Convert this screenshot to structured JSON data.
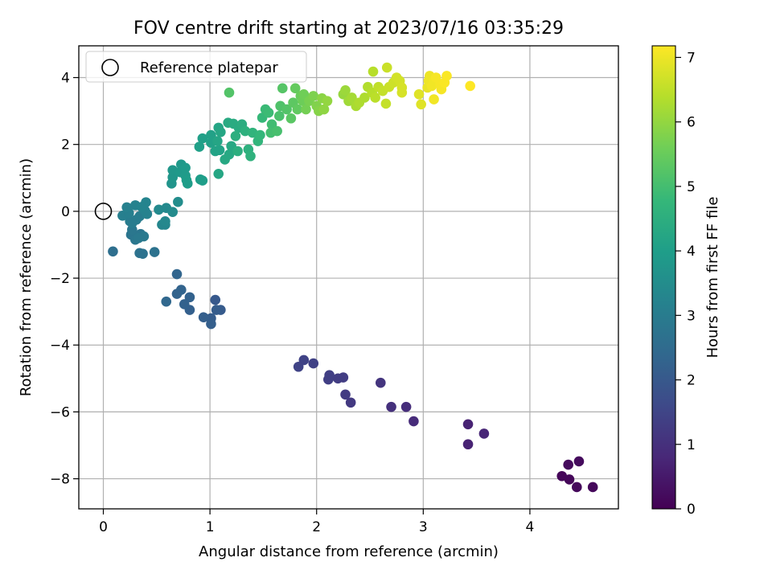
{
  "chart_data": {
    "type": "scatter",
    "title": "FOV centre drift starting at 2023/07/16 03:35:29",
    "xlabel": "Angular distance from reference (arcmin)",
    "ylabel": "Rotation from reference (arcmin)",
    "xlim": [
      -0.23,
      4.83
    ],
    "ylim": [
      -8.9,
      4.95
    ],
    "xticks": [
      0,
      1,
      2,
      3,
      4
    ],
    "yticks": [
      -8,
      -6,
      -4,
      -2,
      0,
      2,
      4
    ],
    "grid": true,
    "legend": {
      "placement": "top-left",
      "entries": [
        "Reference platepar"
      ]
    },
    "reference_point": {
      "x": 0,
      "y": 0,
      "label": "Reference platepar"
    },
    "colorbar": {
      "label": "Hours from first FF file",
      "range": [
        0,
        7.18
      ],
      "ticks": [
        0,
        1,
        2,
        3,
        4,
        5,
        6,
        7
      ],
      "colormap": "viridis",
      "colors": [
        "#440154",
        "#482878",
        "#3e4989",
        "#31688e",
        "#26828e",
        "#1f9e89",
        "#35b779",
        "#6ece58",
        "#b5de2b",
        "#fde725"
      ]
    },
    "points": [
      {
        "x": 4.3,
        "y": -7.92,
        "c": 0.1
      },
      {
        "x": 4.37,
        "y": -8.02,
        "c": 0.12
      },
      {
        "x": 4.44,
        "y": -8.25,
        "c": 0.15
      },
      {
        "x": 4.59,
        "y": -8.25,
        "c": 0.15
      },
      {
        "x": 4.46,
        "y": -7.48,
        "c": 0.2
      },
      {
        "x": 4.36,
        "y": -7.58,
        "c": 0.2
      },
      {
        "x": 3.42,
        "y": -6.37,
        "c": 0.7
      },
      {
        "x": 3.42,
        "y": -6.97,
        "c": 0.7
      },
      {
        "x": 3.57,
        "y": -6.65,
        "c": 0.75
      },
      {
        "x": 2.91,
        "y": -6.28,
        "c": 0.9
      },
      {
        "x": 2.84,
        "y": -5.85,
        "c": 0.95
      },
      {
        "x": 2.7,
        "y": -5.85,
        "c": 1.0
      },
      {
        "x": 2.6,
        "y": -5.13,
        "c": 1.1
      },
      {
        "x": 2.32,
        "y": -5.72,
        "c": 1.2
      },
      {
        "x": 2.27,
        "y": -5.48,
        "c": 1.25
      },
      {
        "x": 2.25,
        "y": -4.97,
        "c": 1.3
      },
      {
        "x": 2.2,
        "y": -5.0,
        "c": 1.3
      },
      {
        "x": 2.12,
        "y": -4.9,
        "c": 1.35
      },
      {
        "x": 2.11,
        "y": -5.03,
        "c": 1.35
      },
      {
        "x": 1.97,
        "y": -4.55,
        "c": 1.4
      },
      {
        "x": 1.88,
        "y": -4.45,
        "c": 1.45
      },
      {
        "x": 1.83,
        "y": -4.65,
        "c": 1.45
      },
      {
        "x": 1.05,
        "y": -2.65,
        "c": 2.0
      },
      {
        "x": 1.1,
        "y": -2.95,
        "c": 2.05
      },
      {
        "x": 1.06,
        "y": -2.95,
        "c": 2.1
      },
      {
        "x": 1.01,
        "y": -3.2,
        "c": 2.1
      },
      {
        "x": 1.01,
        "y": -3.37,
        "c": 2.15
      },
      {
        "x": 0.94,
        "y": -3.17,
        "c": 2.15
      },
      {
        "x": 0.81,
        "y": -2.95,
        "c": 2.2
      },
      {
        "x": 0.81,
        "y": -2.57,
        "c": 2.25
      },
      {
        "x": 0.76,
        "y": -2.78,
        "c": 2.25
      },
      {
        "x": 0.73,
        "y": -2.35,
        "c": 2.3
      },
      {
        "x": 0.69,
        "y": -2.47,
        "c": 2.3
      },
      {
        "x": 0.69,
        "y": -1.88,
        "c": 2.35
      },
      {
        "x": 0.59,
        "y": -2.7,
        "c": 2.4
      },
      {
        "x": 0.09,
        "y": -1.2,
        "c": 2.6
      },
      {
        "x": 0.37,
        "y": -1.27,
        "c": 2.7
      },
      {
        "x": 0.34,
        "y": -1.25,
        "c": 2.7
      },
      {
        "x": 0.48,
        "y": -1.22,
        "c": 2.7
      },
      {
        "x": 0.26,
        "y": -0.7,
        "c": 2.8
      },
      {
        "x": 0.35,
        "y": -0.68,
        "c": 2.8
      },
      {
        "x": 0.3,
        "y": -0.85,
        "c": 2.85
      },
      {
        "x": 0.27,
        "y": -0.55,
        "c": 2.85
      },
      {
        "x": 0.38,
        "y": -0.75,
        "c": 2.9
      },
      {
        "x": 0.33,
        "y": -0.8,
        "c": 2.9
      },
      {
        "x": 0.25,
        "y": -0.3,
        "c": 3.0
      },
      {
        "x": 0.31,
        "y": -0.25,
        "c": 3.0
      },
      {
        "x": 0.27,
        "y": -0.35,
        "c": 3.0
      },
      {
        "x": 0.34,
        "y": -0.15,
        "c": 3.05
      },
      {
        "x": 0.18,
        "y": -0.13,
        "c": 3.1
      },
      {
        "x": 0.24,
        "y": -0.05,
        "c": 3.1
      },
      {
        "x": 0.22,
        "y": 0.12,
        "c": 3.15
      },
      {
        "x": 0.3,
        "y": 0.18,
        "c": 3.2
      },
      {
        "x": 0.39,
        "y": 0.02,
        "c": 3.2
      },
      {
        "x": 0.41,
        "y": -0.08,
        "c": 3.2
      },
      {
        "x": 0.4,
        "y": 0.27,
        "c": 3.25
      },
      {
        "x": 0.36,
        "y": 0.13,
        "c": 3.25
      },
      {
        "x": 0.58,
        "y": -0.4,
        "c": 3.3
      },
      {
        "x": 0.55,
        "y": -0.4,
        "c": 3.3
      },
      {
        "x": 0.58,
        "y": -0.3,
        "c": 3.35
      },
      {
        "x": 0.52,
        "y": 0.05,
        "c": 3.4
      },
      {
        "x": 0.59,
        "y": 0.1,
        "c": 3.4
      },
      {
        "x": 0.65,
        "y": -0.02,
        "c": 3.45
      },
      {
        "x": 0.7,
        "y": 0.28,
        "c": 3.5
      },
      {
        "x": 0.64,
        "y": 0.83,
        "c": 3.7
      },
      {
        "x": 0.65,
        "y": 1.02,
        "c": 3.75
      },
      {
        "x": 0.65,
        "y": 1.23,
        "c": 3.8
      },
      {
        "x": 0.72,
        "y": 1.17,
        "c": 3.85
      },
      {
        "x": 0.73,
        "y": 1.4,
        "c": 3.85
      },
      {
        "x": 0.77,
        "y": 1.3,
        "c": 3.9
      },
      {
        "x": 0.77,
        "y": 1.07,
        "c": 3.9
      },
      {
        "x": 0.78,
        "y": 0.93,
        "c": 3.95
      },
      {
        "x": 0.79,
        "y": 0.83,
        "c": 3.95
      },
      {
        "x": 0.91,
        "y": 0.95,
        "c": 4.0
      },
      {
        "x": 0.93,
        "y": 0.92,
        "c": 4.0
      },
      {
        "x": 0.9,
        "y": 1.93,
        "c": 4.05
      },
      {
        "x": 0.93,
        "y": 2.18,
        "c": 4.05
      },
      {
        "x": 1.01,
        "y": 2.28,
        "c": 4.1
      },
      {
        "x": 1.01,
        "y": 2.05,
        "c": 4.1
      },
      {
        "x": 1.05,
        "y": 1.8,
        "c": 4.15
      },
      {
        "x": 1.09,
        "y": 1.83,
        "c": 4.15
      },
      {
        "x": 1.07,
        "y": 2.1,
        "c": 4.2
      },
      {
        "x": 1.08,
        "y": 2.5,
        "c": 4.2
      },
      {
        "x": 1.1,
        "y": 2.37,
        "c": 4.25
      },
      {
        "x": 1.08,
        "y": 1.12,
        "c": 4.25
      },
      {
        "x": 1.14,
        "y": 1.55,
        "c": 4.3
      },
      {
        "x": 1.18,
        "y": 1.7,
        "c": 4.3
      },
      {
        "x": 1.2,
        "y": 1.95,
        "c": 4.3
      },
      {
        "x": 1.17,
        "y": 2.65,
        "c": 4.35
      },
      {
        "x": 1.22,
        "y": 2.62,
        "c": 4.4
      },
      {
        "x": 1.27,
        "y": 2.5,
        "c": 4.4
      },
      {
        "x": 1.3,
        "y": 2.6,
        "c": 4.45
      },
      {
        "x": 1.24,
        "y": 2.25,
        "c": 4.5
      },
      {
        "x": 1.26,
        "y": 1.8,
        "c": 4.5
      },
      {
        "x": 1.33,
        "y": 2.4,
        "c": 4.55
      },
      {
        "x": 1.36,
        "y": 1.85,
        "c": 4.55
      },
      {
        "x": 1.38,
        "y": 1.65,
        "c": 4.6
      },
      {
        "x": 1.4,
        "y": 2.35,
        "c": 4.65
      },
      {
        "x": 1.45,
        "y": 2.1,
        "c": 4.7
      },
      {
        "x": 1.47,
        "y": 2.28,
        "c": 4.75
      },
      {
        "x": 1.49,
        "y": 2.8,
        "c": 4.8
      },
      {
        "x": 1.52,
        "y": 3.05,
        "c": 4.85
      },
      {
        "x": 1.55,
        "y": 2.95,
        "c": 4.9
      },
      {
        "x": 1.58,
        "y": 2.6,
        "c": 4.95
      },
      {
        "x": 1.57,
        "y": 2.35,
        "c": 5.0
      },
      {
        "x": 1.63,
        "y": 2.4,
        "c": 5.05
      },
      {
        "x": 1.65,
        "y": 2.85,
        "c": 5.1
      },
      {
        "x": 1.66,
        "y": 3.15,
        "c": 5.15
      },
      {
        "x": 1.72,
        "y": 3.05,
        "c": 5.2
      },
      {
        "x": 1.68,
        "y": 3.68,
        "c": 5.25
      },
      {
        "x": 1.18,
        "y": 3.55,
        "c": 5.2
      },
      {
        "x": 1.76,
        "y": 2.78,
        "c": 5.3
      },
      {
        "x": 1.78,
        "y": 3.25,
        "c": 5.35
      },
      {
        "x": 1.82,
        "y": 3.05,
        "c": 5.4
      },
      {
        "x": 1.8,
        "y": 3.68,
        "c": 5.45
      },
      {
        "x": 1.85,
        "y": 3.45,
        "c": 5.5
      },
      {
        "x": 1.87,
        "y": 3.3,
        "c": 5.55
      },
      {
        "x": 1.88,
        "y": 3.5,
        "c": 5.6
      },
      {
        "x": 1.9,
        "y": 3.05,
        "c": 5.65
      },
      {
        "x": 1.93,
        "y": 3.3,
        "c": 5.7
      },
      {
        "x": 1.97,
        "y": 3.45,
        "c": 5.75
      },
      {
        "x": 2.0,
        "y": 3.15,
        "c": 5.8
      },
      {
        "x": 2.02,
        "y": 3.0,
        "c": 5.85
      },
      {
        "x": 2.05,
        "y": 3.38,
        "c": 5.9
      },
      {
        "x": 2.07,
        "y": 3.05,
        "c": 5.95
      },
      {
        "x": 2.1,
        "y": 3.3,
        "c": 6.0
      },
      {
        "x": 2.25,
        "y": 3.5,
        "c": 6.05
      },
      {
        "x": 2.27,
        "y": 3.62,
        "c": 6.1
      },
      {
        "x": 2.3,
        "y": 3.3,
        "c": 6.15
      },
      {
        "x": 2.33,
        "y": 3.4,
        "c": 6.2
      },
      {
        "x": 2.37,
        "y": 3.15,
        "c": 6.25
      },
      {
        "x": 2.4,
        "y": 3.25,
        "c": 6.3
      },
      {
        "x": 2.45,
        "y": 3.4,
        "c": 6.3
      },
      {
        "x": 2.48,
        "y": 3.72,
        "c": 6.35
      },
      {
        "x": 2.52,
        "y": 3.55,
        "c": 6.4
      },
      {
        "x": 2.53,
        "y": 4.18,
        "c": 6.4
      },
      {
        "x": 2.55,
        "y": 3.4,
        "c": 6.45
      },
      {
        "x": 2.58,
        "y": 3.72,
        "c": 6.5
      },
      {
        "x": 2.62,
        "y": 3.6,
        "c": 6.55
      },
      {
        "x": 2.65,
        "y": 3.22,
        "c": 6.55
      },
      {
        "x": 2.66,
        "y": 4.3,
        "c": 6.6
      },
      {
        "x": 2.68,
        "y": 3.72,
        "c": 6.6
      },
      {
        "x": 2.72,
        "y": 3.85,
        "c": 6.65
      },
      {
        "x": 2.75,
        "y": 4.0,
        "c": 6.7
      },
      {
        "x": 2.78,
        "y": 3.9,
        "c": 6.7
      },
      {
        "x": 2.8,
        "y": 3.55,
        "c": 6.75
      },
      {
        "x": 2.8,
        "y": 3.7,
        "c": 6.75
      },
      {
        "x": 2.96,
        "y": 3.5,
        "c": 6.85
      },
      {
        "x": 2.98,
        "y": 3.2,
        "c": 6.85
      },
      {
        "x": 3.04,
        "y": 3.7,
        "c": 6.95
      },
      {
        "x": 3.05,
        "y": 3.9,
        "c": 7.0
      },
      {
        "x": 3.06,
        "y": 4.05,
        "c": 7.0
      },
      {
        "x": 3.08,
        "y": 3.75,
        "c": 7.05
      },
      {
        "x": 3.1,
        "y": 3.9,
        "c": 7.05
      },
      {
        "x": 3.1,
        "y": 3.35,
        "c": 7.05
      },
      {
        "x": 3.12,
        "y": 4.0,
        "c": 7.1
      },
      {
        "x": 3.16,
        "y": 3.8,
        "c": 7.1
      },
      {
        "x": 3.17,
        "y": 3.65,
        "c": 7.1
      },
      {
        "x": 3.2,
        "y": 3.85,
        "c": 7.15
      },
      {
        "x": 3.22,
        "y": 4.05,
        "c": 7.15
      },
      {
        "x": 3.44,
        "y": 3.75,
        "c": 7.18
      }
    ]
  }
}
